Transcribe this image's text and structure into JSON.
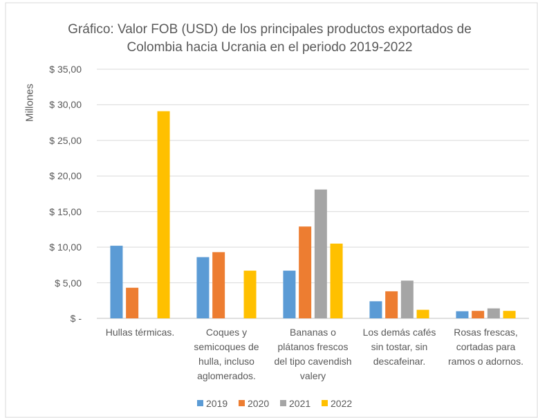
{
  "chart_data": {
    "type": "bar",
    "title": "Gráfico: Valor FOB (USD) de los principales productos exportados de Colombia hacia Ucrania en el periodo 2019-2022",
    "y_label": "Millones",
    "categories": [
      "Hullas térmicas.",
      "Coques y semicoques de hulla, incluso aglomerados.",
      "Bananas o plátanos frescos del tipo cavendish valery",
      "Los demás cafés sin tostar, sin descafeinar.",
      "Rosas frescas, cortadas para ramos o adornos."
    ],
    "series": [
      {
        "name": "2019",
        "color": "#5b9bd5",
        "values": [
          10.2,
          8.6,
          6.7,
          2.4,
          1.0
        ]
      },
      {
        "name": "2020",
        "color": "#ed7d31",
        "values": [
          4.3,
          9.3,
          12.9,
          3.8,
          1.05
        ]
      },
      {
        "name": "2021",
        "color": "#a5a5a5",
        "values": [
          null,
          null,
          18.1,
          5.3,
          1.4
        ]
      },
      {
        "name": "2022",
        "color": "#ffc000",
        "values": [
          29.1,
          6.7,
          10.5,
          1.2,
          1.05
        ]
      }
    ],
    "ylim": [
      0,
      35
    ],
    "yticks": [
      {
        "value": 0,
        "label": "$ -"
      },
      {
        "value": 5,
        "label": "$ 5,00"
      },
      {
        "value": 10,
        "label": "$ 10,00"
      },
      {
        "value": 15,
        "label": "$ 15,00"
      },
      {
        "value": 20,
        "label": "$ 20,00"
      },
      {
        "value": 25,
        "label": "$ 25,00"
      },
      {
        "value": 30,
        "label": "$ 30,00"
      },
      {
        "value": 35,
        "label": "$ 35,00"
      }
    ],
    "grid": true,
    "legend": "bottom"
  }
}
